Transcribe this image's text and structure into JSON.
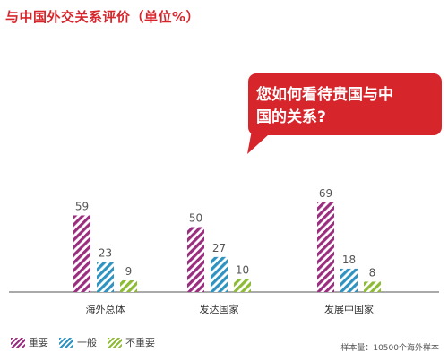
{
  "title": "与中国外交关系评价（单位%）",
  "callout": {
    "line1": "您如何看待贵国与中",
    "line2": "国的关系?"
  },
  "legend": [
    {
      "label": "重要",
      "color": "#9b2d7f"
    },
    {
      "label": "一般",
      "color": "#2f93c2"
    },
    {
      "label": "不重要",
      "color": "#8dbb36"
    }
  ],
  "note": "样本量：10500个海外样本",
  "colors": {
    "accent": "#d6262c",
    "baseline": "#555555"
  },
  "chart_data": {
    "type": "bar",
    "categories": [
      "海外总体",
      "发达国家",
      "发展中国家"
    ],
    "series": [
      {
        "name": "重要",
        "values": [
          59,
          50,
          69
        ]
      },
      {
        "name": "一般",
        "values": [
          23,
          27,
          18
        ]
      },
      {
        "name": "不重要",
        "values": [
          9,
          10,
          8
        ]
      }
    ],
    "ylim": [
      0,
      100
    ],
    "grid": false,
    "legend_position": "bottom-left",
    "pattern": "diagonal-stripes"
  }
}
